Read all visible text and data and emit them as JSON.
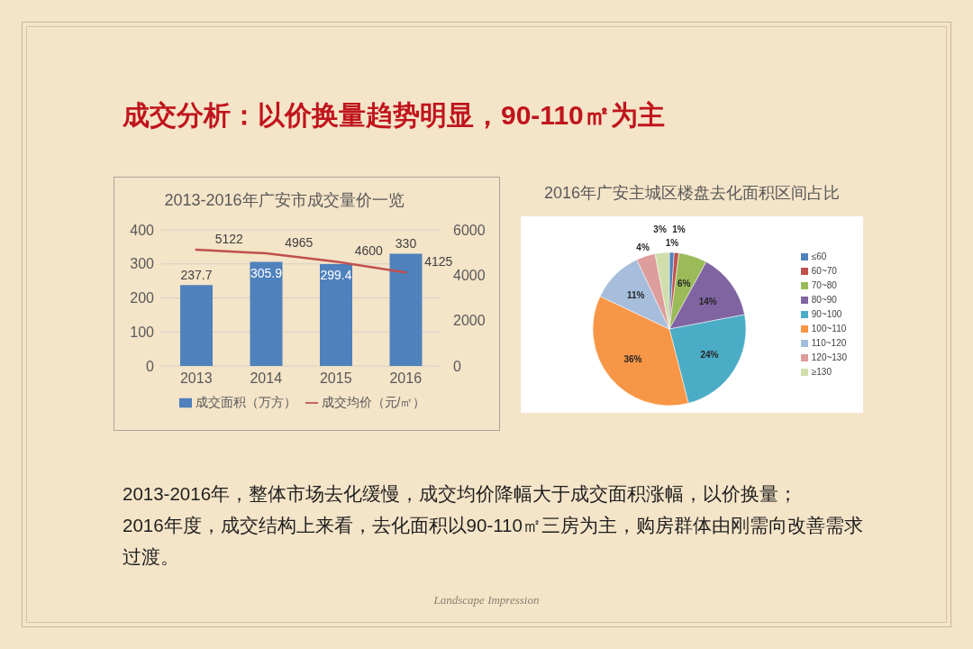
{
  "chart_data": [
    {
      "type": "other",
      "title": "成交分析：以价换量趋势明显，90-110㎡为主"
    },
    {
      "type": "bar",
      "title": "2013-2016年广安市成交量价一览",
      "categories": [
        "2013",
        "2014",
        "2015",
        "2016"
      ],
      "series": [
        {
          "name": "成交面积（万方）",
          "color": "#4f81bd",
          "values": [
            237.7,
            305.9,
            299.4,
            330
          ]
        },
        {
          "name": "成交均价（元/㎡）",
          "type": "line",
          "axis": "y2",
          "color": "#c0504d",
          "values": [
            5122,
            4965,
            4600,
            4125
          ]
        }
      ],
      "ylim": [
        0,
        400
      ],
      "yticks": [
        0,
        100,
        200,
        300,
        400
      ],
      "y2lim": [
        0,
        6000
      ],
      "y2ticks": [
        0,
        2000,
        4000,
        6000
      ],
      "grid": "y",
      "legend": "bottom",
      "data_labels": true,
      "marker": "none"
    },
    {
      "type": "pie",
      "title": "2016年广安主城区楼盘去化面积区间占比",
      "categories": [
        "≤60",
        "60~70",
        "70~80",
        "80~90",
        "90~100",
        "100~110",
        "110~120",
        "120~130",
        "≥130"
      ],
      "values": [
        1,
        1,
        6,
        14,
        24,
        36,
        11,
        4,
        3
      ],
      "colors": [
        "#4f81bd",
        "#c0504d",
        "#9bbb59",
        "#8064a2",
        "#4bacc6",
        "#f79646",
        "#a6bddb",
        "#dc9d9b",
        "#cfdeab"
      ],
      "value_labels": [
        "1%",
        "1%",
        "6%",
        "14%",
        "24%",
        "36%",
        "11%",
        "4%",
        "3%"
      ],
      "legend": "right"
    },
    {
      "type": "other",
      "annotations": [
        "2013-2016年，整体市场去化缓慢，成交均价降幅大于成交面积涨幅，以价换量；",
        "2016年度，成交结构上来看，去化面积以90-110㎡三房为主，购房群体由刚需向改善需求过渡。"
      ]
    },
    {
      "type": "other",
      "annotations": [
        "Landscape Impression"
      ]
    }
  ]
}
